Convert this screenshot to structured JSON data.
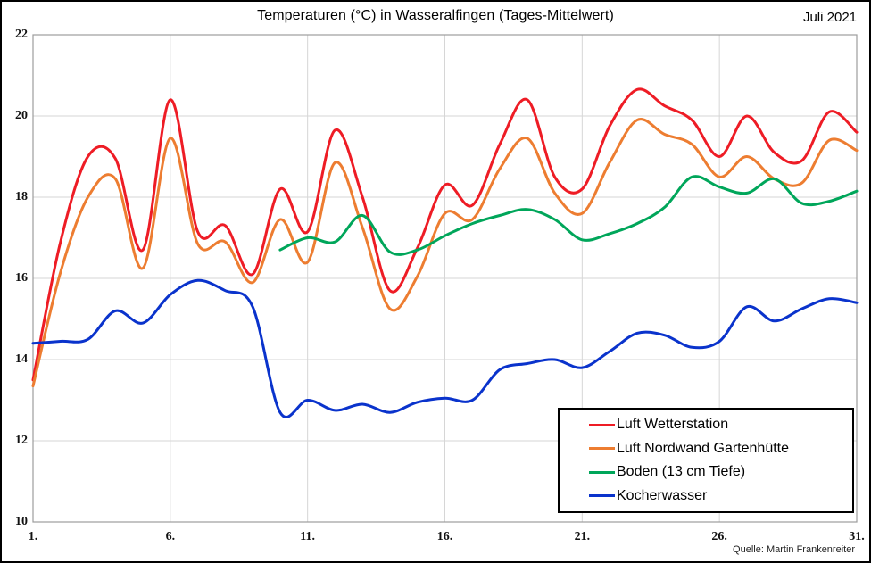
{
  "title": "Temperaturen (°C) in Wasseralfingen (Tages-Mittelwert)",
  "period_label": "Juli 2021",
  "source": "Quelle: Martin Frankenreiter",
  "axes": {
    "y_tick_labels": [
      "22",
      "20",
      "18",
      "16",
      "14",
      "12",
      "10"
    ],
    "x_tick_labels": [
      "1.",
      "6.",
      "11.",
      "16.",
      "21.",
      "26.",
      "31."
    ]
  },
  "colors": {
    "grid": "#d6d6d6",
    "plot_border": "#9c9c9c",
    "outer_border": "#000000"
  },
  "chart_data": {
    "type": "line",
    "xlabel": "",
    "ylabel": "",
    "x": [
      1,
      2,
      3,
      4,
      5,
      6,
      7,
      8,
      9,
      10,
      11,
      12,
      13,
      14,
      15,
      16,
      17,
      18,
      19,
      20,
      21,
      22,
      23,
      24,
      25,
      26,
      27,
      28,
      29,
      30,
      31
    ],
    "x_ticks": [
      1,
      6,
      11,
      16,
      21,
      26,
      31
    ],
    "x_tick_labels": [
      "1.",
      "6.",
      "11.",
      "16.",
      "21.",
      "26.",
      "31."
    ],
    "xlim": [
      1,
      31
    ],
    "y_ticks": [
      10,
      12,
      14,
      16,
      18,
      20,
      22
    ],
    "ylim": [
      10,
      22
    ],
    "grid": true,
    "legend_position": "inside-bottom-right",
    "series": [
      {
        "name": "Luft Wetterstation",
        "color": "#ee1c25",
        "values": [
          13.5,
          16.9,
          19.0,
          18.95,
          16.7,
          20.4,
          17.15,
          17.3,
          16.1,
          18.2,
          17.15,
          19.65,
          18.0,
          15.7,
          16.75,
          18.3,
          17.8,
          19.3,
          20.4,
          18.5,
          18.2,
          19.75,
          20.65,
          20.25,
          19.9,
          19.0,
          20.0,
          19.1,
          18.9,
          20.1,
          19.6
        ]
      },
      {
        "name": "Luft Nordwand Gartenhütte",
        "color": "#ed7d31",
        "values": [
          13.35,
          16.15,
          18.0,
          18.45,
          16.25,
          19.45,
          16.85,
          16.9,
          15.9,
          17.45,
          16.4,
          18.85,
          17.25,
          15.25,
          16.05,
          17.6,
          17.45,
          18.7,
          19.45,
          18.1,
          17.6,
          18.85,
          19.9,
          19.55,
          19.3,
          18.5,
          19.0,
          18.45,
          18.35,
          19.4,
          19.15
        ]
      },
      {
        "name": "Boden (13 cm Tiefe)",
        "color": "#00a65a",
        "values": [
          null,
          null,
          null,
          null,
          null,
          null,
          null,
          null,
          null,
          16.7,
          17.0,
          16.9,
          17.55,
          16.65,
          16.7,
          17.05,
          17.35,
          17.55,
          17.7,
          17.45,
          16.95,
          17.1,
          17.35,
          17.75,
          18.5,
          18.25,
          18.1,
          18.45,
          17.85,
          17.9,
          18.15
        ]
      },
      {
        "name": "Kocherwasser",
        "color": "#0a33cc",
        "values": [
          14.4,
          14.45,
          14.5,
          15.2,
          14.9,
          15.6,
          15.95,
          15.7,
          15.3,
          12.7,
          13.0,
          12.75,
          12.9,
          12.7,
          12.95,
          13.05,
          13.0,
          13.75,
          13.9,
          14.0,
          13.8,
          14.2,
          14.65,
          14.6,
          14.3,
          14.45,
          15.3,
          14.95,
          15.25,
          15.5,
          15.4
        ]
      }
    ]
  }
}
